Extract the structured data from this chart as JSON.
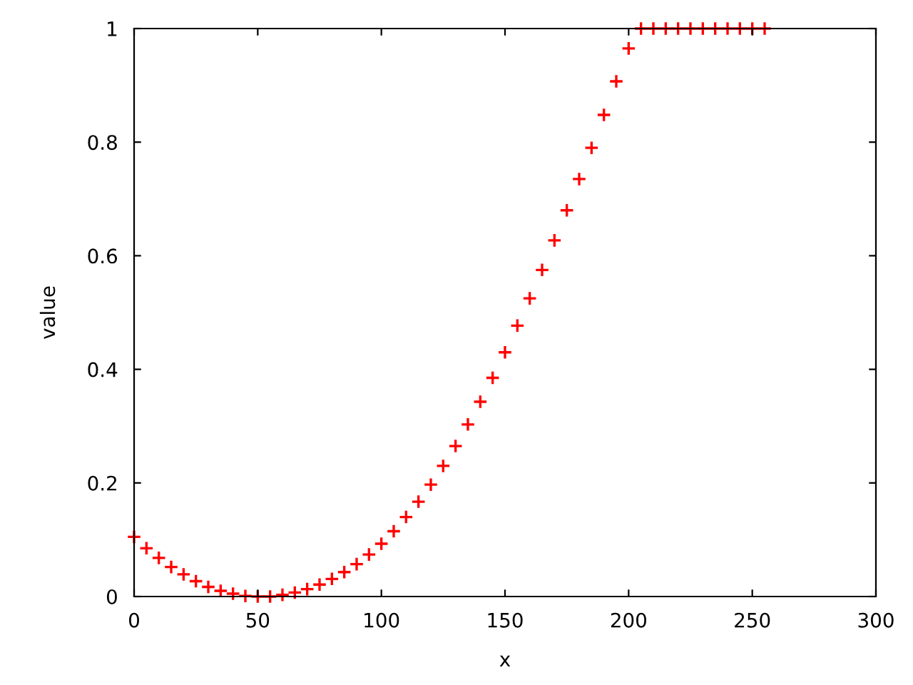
{
  "chart_data": {
    "type": "scatter",
    "xlabel": "x",
    "ylabel": "value",
    "marker": "cross",
    "grid": false,
    "legend": false,
    "xlim": [
      0,
      300
    ],
    "ylim": [
      0,
      1
    ],
    "xticks": [
      0,
      50,
      100,
      150,
      200,
      250,
      300
    ],
    "yticks": [
      0,
      0.2,
      0.4,
      0.6,
      0.8,
      1
    ],
    "series": [
      {
        "color": "#ff0000",
        "x": [
          0,
          5,
          10,
          15,
          20,
          25,
          30,
          35,
          40,
          45,
          50,
          55,
          60,
          65,
          70,
          75,
          80,
          85,
          90,
          95,
          100,
          105,
          110,
          115,
          120,
          125,
          130,
          135,
          140,
          145,
          150,
          155,
          160,
          165,
          170,
          175,
          180,
          185,
          190,
          195,
          200,
          205,
          210,
          215,
          220,
          225,
          230,
          235,
          240,
          245,
          250,
          255
        ],
        "values": [
          0.105,
          0.085,
          0.068,
          0.052,
          0.039,
          0.027,
          0.017,
          0.01,
          0.005,
          0.001,
          0,
          0,
          0.003,
          0.007,
          0.013,
          0.021,
          0.031,
          0.043,
          0.057,
          0.074,
          0.093,
          0.115,
          0.14,
          0.167,
          0.197,
          0.23,
          0.265,
          0.303,
          0.343,
          0.385,
          0.43,
          0.477,
          0.525,
          0.575,
          0.627,
          0.68,
          0.735,
          0.79,
          0.848,
          0.907,
          0.965,
          1,
          1,
          1,
          1,
          1,
          1,
          1,
          1,
          1,
          1,
          1
        ]
      }
    ]
  }
}
